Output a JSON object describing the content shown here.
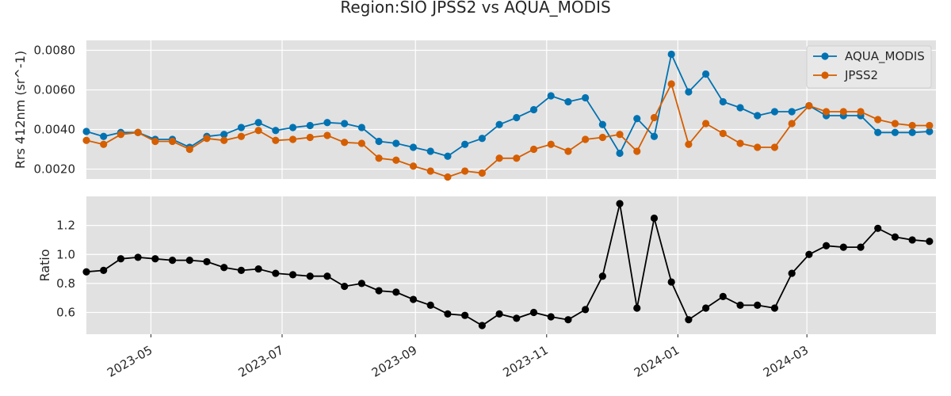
{
  "title": "Region:SIO JPSS2 vs AQUA_MODIS",
  "chart_data": [
    {
      "type": "line",
      "ylabel": "Rrs 412nm (sr^-1)",
      "xlim": [
        "2023-04-01",
        "2024-04-30"
      ],
      "ylim": [
        0.0015,
        0.0085
      ],
      "yticks": [
        0.002,
        0.004,
        0.006,
        0.008
      ],
      "ytick_labels": [
        "0.0020",
        "0.0040",
        "0.0060",
        "0.0080"
      ],
      "grid": true,
      "legend_position": "top-right",
      "x": [
        "2023-04-01",
        "2023-04-09",
        "2023-04-17",
        "2023-04-25",
        "2023-05-03",
        "2023-05-11",
        "2023-05-19",
        "2023-05-27",
        "2023-06-04",
        "2023-06-12",
        "2023-06-20",
        "2023-06-28",
        "2023-07-06",
        "2023-07-14",
        "2023-07-22",
        "2023-07-30",
        "2023-08-07",
        "2023-08-15",
        "2023-08-23",
        "2023-08-31",
        "2023-09-08",
        "2023-09-16",
        "2023-09-24",
        "2023-10-02",
        "2023-10-10",
        "2023-10-18",
        "2023-10-26",
        "2023-11-03",
        "2023-11-11",
        "2023-11-19",
        "2023-11-27",
        "2023-12-05",
        "2023-12-13",
        "2023-12-21",
        "2023-12-29",
        "2024-01-06",
        "2024-01-14",
        "2024-01-22",
        "2024-01-30",
        "2024-02-07",
        "2024-02-15",
        "2024-02-23",
        "2024-03-02",
        "2024-03-10",
        "2024-03-18",
        "2024-03-26",
        "2024-04-03",
        "2024-04-11",
        "2024-04-19",
        "2024-04-27"
      ],
      "series": [
        {
          "name": "AQUA_MODIS",
          "color": "#0072B2",
          "values": [
            0.0039,
            0.00365,
            0.00385,
            0.00385,
            0.0035,
            0.0035,
            0.0031,
            0.00365,
            0.00375,
            0.0041,
            0.00435,
            0.00395,
            0.0041,
            0.0042,
            0.00435,
            0.0043,
            0.0041,
            0.0034,
            0.0033,
            0.0031,
            0.0029,
            0.00265,
            0.00325,
            0.00355,
            0.00425,
            0.0046,
            0.005,
            0.0057,
            0.0054,
            0.0056,
            0.00425,
            0.0028,
            0.00455,
            0.00365,
            0.0078,
            0.0059,
            0.0068,
            0.0054,
            0.0051,
            0.0047,
            0.0049,
            0.0049,
            0.0052,
            0.0047,
            0.0047,
            0.0047,
            0.00385,
            0.00385,
            0.00385,
            0.0039
          ]
        },
        {
          "name": "JPSS2",
          "color": "#D55E00",
          "values": [
            0.00345,
            0.00325,
            0.00375,
            0.00385,
            0.0034,
            0.0034,
            0.003,
            0.00355,
            0.00345,
            0.00365,
            0.00395,
            0.00345,
            0.0035,
            0.0036,
            0.0037,
            0.00335,
            0.0033,
            0.00255,
            0.00245,
            0.00215,
            0.0019,
            0.0016,
            0.0019,
            0.0018,
            0.00255,
            0.00255,
            0.003,
            0.00325,
            0.0029,
            0.0035,
            0.0036,
            0.00375,
            0.0029,
            0.0046,
            0.0063,
            0.00325,
            0.0043,
            0.0038,
            0.0033,
            0.0031,
            0.0031,
            0.0043,
            0.0052,
            0.0049,
            0.0049,
            0.0049,
            0.0045,
            0.0043,
            0.0042,
            0.0042
          ]
        }
      ]
    },
    {
      "type": "line",
      "ylabel": "Ratio",
      "xlim": [
        "2023-04-01",
        "2024-04-30"
      ],
      "ylim": [
        0.45,
        1.4
      ],
      "yticks": [
        0.6,
        0.8,
        1.0,
        1.2
      ],
      "ytick_labels": [
        "0.6",
        "0.8",
        "1.0",
        "1.2"
      ],
      "grid": true,
      "xticks": [
        "2023-05-01",
        "2023-07-01",
        "2023-09-01",
        "2023-11-01",
        "2024-01-01",
        "2024-03-01"
      ],
      "xtick_labels": [
        "2023-05",
        "2023-07",
        "2023-09",
        "2023-11",
        "2024-01",
        "2024-03"
      ],
      "x": [
        "2023-04-01",
        "2023-04-09",
        "2023-04-17",
        "2023-04-25",
        "2023-05-03",
        "2023-05-11",
        "2023-05-19",
        "2023-05-27",
        "2023-06-04",
        "2023-06-12",
        "2023-06-20",
        "2023-06-28",
        "2023-07-06",
        "2023-07-14",
        "2023-07-22",
        "2023-07-30",
        "2023-08-07",
        "2023-08-15",
        "2023-08-23",
        "2023-08-31",
        "2023-09-08",
        "2023-09-16",
        "2023-09-24",
        "2023-10-02",
        "2023-10-10",
        "2023-10-18",
        "2023-10-26",
        "2023-11-03",
        "2023-11-11",
        "2023-11-19",
        "2023-11-27",
        "2023-12-05",
        "2023-12-13",
        "2023-12-21",
        "2023-12-29",
        "2024-01-06",
        "2024-01-14",
        "2024-01-22",
        "2024-01-30",
        "2024-02-07",
        "2024-02-15",
        "2024-02-23",
        "2024-03-02",
        "2024-03-10",
        "2024-03-18",
        "2024-03-26",
        "2024-04-03",
        "2024-04-11",
        "2024-04-19",
        "2024-04-27"
      ],
      "series": [
        {
          "color": "#000000",
          "values": [
            0.88,
            0.89,
            0.97,
            0.98,
            0.97,
            0.96,
            0.96,
            0.95,
            0.91,
            0.89,
            0.9,
            0.87,
            0.86,
            0.85,
            0.85,
            0.78,
            0.8,
            0.75,
            0.74,
            0.69,
            0.65,
            0.59,
            0.58,
            0.51,
            0.59,
            0.56,
            0.6,
            0.57,
            0.55,
            0.62,
            0.85,
            1.35,
            0.63,
            1.25,
            0.81,
            0.55,
            0.63,
            0.71,
            0.65,
            0.65,
            0.63,
            0.87,
            1.0,
            1.06,
            1.05,
            1.05,
            1.18,
            1.12,
            1.1,
            1.09
          ]
        }
      ]
    }
  ]
}
